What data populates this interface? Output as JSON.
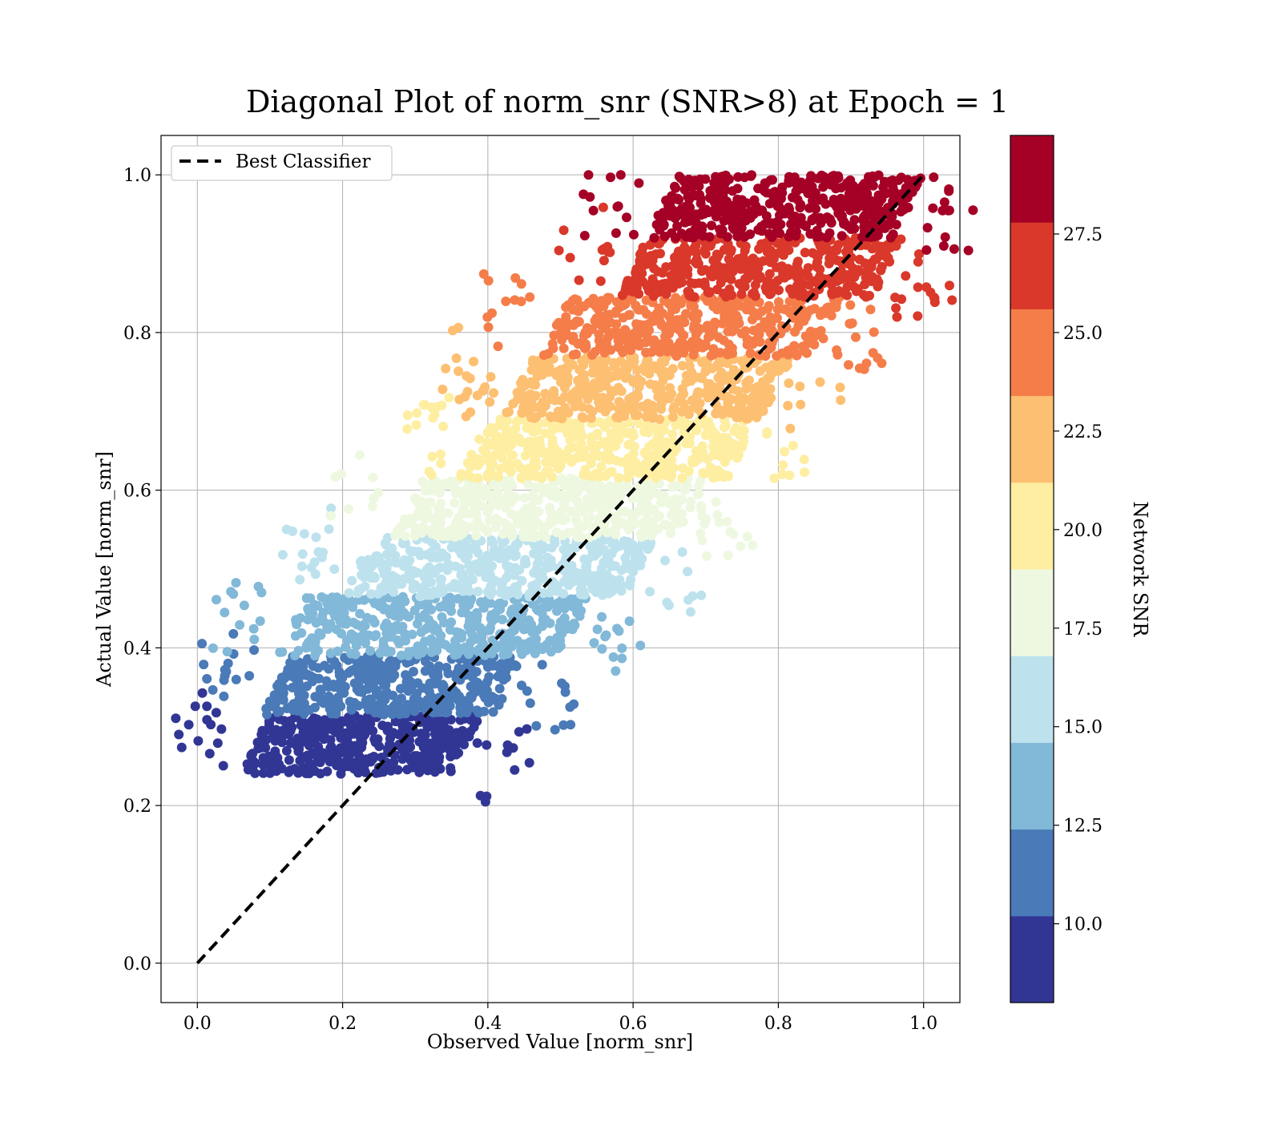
{
  "chart_data": {
    "type": "scatter",
    "title": "Diagonal Plot of norm_snr (SNR>8) at Epoch = 1",
    "xlabel": "Observed Value [norm_snr]",
    "ylabel": "Actual Value [norm_snr]",
    "xlim": [
      -0.05,
      1.05
    ],
    "ylim": [
      -0.05,
      1.05
    ],
    "xticks": [
      "0.0",
      "0.2",
      "0.4",
      "0.6",
      "0.8",
      "1.0"
    ],
    "yticks": [
      "0.0",
      "0.2",
      "0.4",
      "0.6",
      "0.8",
      "1.0"
    ],
    "grid": true,
    "legend": {
      "position": "top-left",
      "entries": [
        "Best Classifier"
      ]
    },
    "reference_line": {
      "name": "Best Classifier",
      "x": [
        0,
        1
      ],
      "y": [
        0,
        1
      ],
      "style": "dashed",
      "color": "#000000"
    },
    "colorbar": {
      "label": "Network SNR",
      "range": [
        8,
        30
      ],
      "ticks": [
        "10.0",
        "12.5",
        "15.0",
        "17.5",
        "20.0",
        "22.5",
        "25.0",
        "27.5"
      ],
      "bins": [
        {
          "snr_min": 8.0,
          "snr_max": 10.2,
          "color": "#313695"
        },
        {
          "snr_min": 10.2,
          "snr_max": 12.4,
          "color": "#4a7ab7"
        },
        {
          "snr_min": 12.4,
          "snr_max": 14.6,
          "color": "#82b8d8"
        },
        {
          "snr_min": 14.6,
          "snr_max": 16.8,
          "color": "#bde2ee"
        },
        {
          "snr_min": 16.8,
          "snr_max": 19.0,
          "color": "#eef8e0"
        },
        {
          "snr_min": 19.0,
          "snr_max": 21.2,
          "color": "#feeea2"
        },
        {
          "snr_min": 21.2,
          "snr_max": 23.4,
          "color": "#fdbf71"
        },
        {
          "snr_min": 23.4,
          "snr_max": 25.6,
          "color": "#f57d4a"
        },
        {
          "snr_min": 25.6,
          "snr_max": 27.8,
          "color": "#d9382a"
        },
        {
          "snr_min": 27.8,
          "snr_max": 30.0,
          "color": "#a50026"
        }
      ]
    },
    "scatter_bands": [
      {
        "snr_bin": 0,
        "y": [
          0.24,
          0.315
        ],
        "x_left": 0.06,
        "x_right": 0.37
      },
      {
        "snr_bin": 1,
        "y": [
          0.315,
          0.39
        ],
        "x_left": 0.09,
        "x_right": 0.43
      },
      {
        "snr_bin": 2,
        "y": [
          0.39,
          0.465
        ],
        "x_left": 0.11,
        "x_right": 0.52
      },
      {
        "snr_bin": 3,
        "y": [
          0.465,
          0.54
        ],
        "x_left": 0.2,
        "x_right": 0.61
      },
      {
        "snr_bin": 4,
        "y": [
          0.54,
          0.615
        ],
        "x_left": 0.27,
        "x_right": 0.68
      },
      {
        "snr_bin": 5,
        "y": [
          0.615,
          0.69
        ],
        "x_left": 0.36,
        "x_right": 0.75
      },
      {
        "snr_bin": 6,
        "y": [
          0.69,
          0.77
        ],
        "x_left": 0.42,
        "x_right": 0.8
      },
      {
        "snr_bin": 7,
        "y": [
          0.77,
          0.845
        ],
        "x_left": 0.47,
        "x_right": 0.87
      },
      {
        "snr_bin": 8,
        "y": [
          0.845,
          0.92
        ],
        "x_left": 0.58,
        "x_right": 0.95
      },
      {
        "snr_bin": 9,
        "y": [
          0.92,
          1.0
        ],
        "x_left": 0.62,
        "x_right": 0.98
      }
    ]
  }
}
